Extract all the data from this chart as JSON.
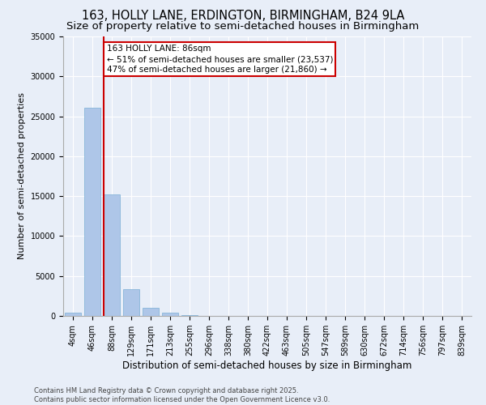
{
  "title_line1": "163, HOLLY LANE, ERDINGTON, BIRMINGHAM, B24 9LA",
  "title_line2": "Size of property relative to semi-detached houses in Birmingham",
  "xlabel": "Distribution of semi-detached houses by size in Birmingham",
  "ylabel": "Number of semi-detached properties",
  "categories": [
    "4sqm",
    "46sqm",
    "88sqm",
    "129sqm",
    "171sqm",
    "213sqm",
    "255sqm",
    "296sqm",
    "338sqm",
    "380sqm",
    "422sqm",
    "463sqm",
    "505sqm",
    "547sqm",
    "589sqm",
    "630sqm",
    "672sqm",
    "714sqm",
    "756sqm",
    "797sqm",
    "839sqm"
  ],
  "values": [
    400,
    26100,
    15200,
    3350,
    1050,
    430,
    150,
    30,
    5,
    2,
    1,
    0,
    0,
    0,
    0,
    0,
    0,
    0,
    0,
    0,
    0
  ],
  "bar_color": "#aec6e8",
  "bar_edge_color": "#7aafd4",
  "subject_sqm": 86,
  "pct_smaller": 51,
  "count_smaller": 23537,
  "pct_larger": 47,
  "count_larger": 21860,
  "annotation_box_color": "#ffffff",
  "annotation_box_edge": "#cc0000",
  "vline_color": "#cc0000",
  "ylim": [
    0,
    35000
  ],
  "yticks": [
    0,
    5000,
    10000,
    15000,
    20000,
    25000,
    30000,
    35000
  ],
  "background_color": "#e8eef8",
  "plot_bg_color": "#e8eef8",
  "footer_line1": "Contains HM Land Registry data © Crown copyright and database right 2025.",
  "footer_line2": "Contains public sector information licensed under the Open Government Licence v3.0.",
  "title_fontsize": 10.5,
  "subtitle_fontsize": 9.5,
  "tick_fontsize": 7,
  "ylabel_fontsize": 8,
  "xlabel_fontsize": 8.5,
  "footer_fontsize": 6,
  "annot_fontsize": 7.5
}
